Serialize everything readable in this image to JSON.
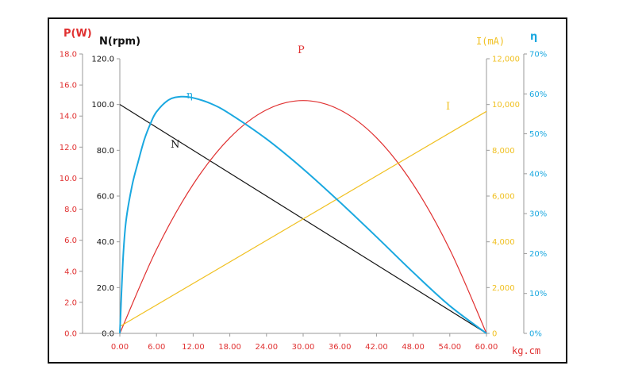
{
  "chart_data": {
    "type": "line",
    "xlabel": "kg.cm",
    "x_ticks": [
      "0.00",
      "6.00",
      "12.00",
      "18.00",
      "24.00",
      "30.00",
      "36.00",
      "42.00",
      "48.00",
      "54.00",
      "60.00"
    ],
    "xlim": [
      0,
      60
    ],
    "axes": {
      "P": {
        "label": "P(W)",
        "ticks": [
          "0.0",
          "2.0",
          "4.0",
          "6.0",
          "8.0",
          "10.0",
          "12.0",
          "14.0",
          "16.0",
          "18.0"
        ],
        "range": [
          0,
          18
        ],
        "color": "#e03030"
      },
      "N": {
        "label": "N(rpm)",
        "ticks": [
          "0.0",
          "20.0",
          "40.0",
          "60.0",
          "80.0",
          "100.0",
          "120.0"
        ],
        "range": [
          0,
          120
        ],
        "color": "#111111"
      },
      "I": {
        "label": "I(mA)",
        "ticks": [
          "0",
          "2,000",
          "4,000",
          "6,000",
          "8,000",
          "10,000",
          "12,000"
        ],
        "range": [
          0,
          12000
        ],
        "color": "#f0c020"
      },
      "eta": {
        "label": "η",
        "ticks": [
          "0%",
          "10%",
          "20%",
          "30%",
          "40%",
          "50%",
          "60%",
          "70%"
        ],
        "range": [
          0,
          70
        ],
        "color": "#1aa8e0"
      }
    },
    "series": [
      {
        "name": "N",
        "axis": "N",
        "color": "#111111",
        "x": [
          0,
          60
        ],
        "y": [
          100,
          0
        ]
      },
      {
        "name": "P",
        "axis": "P",
        "color": "#e03030",
        "x": [
          0,
          6,
          12,
          18,
          24,
          30,
          36,
          42,
          48,
          54,
          60
        ],
        "y": [
          0,
          5.4,
          9.6,
          12.6,
          14.4,
          15.0,
          14.4,
          12.6,
          9.6,
          5.4,
          0
        ]
      },
      {
        "name": "I",
        "axis": "I",
        "color": "#f0c020",
        "x": [
          0,
          60
        ],
        "y": [
          300,
          9700
        ]
      },
      {
        "name": "η",
        "axis": "eta",
        "color": "#1aa8e0",
        "x": [
          0,
          0.5,
          1,
          2,
          3,
          4,
          5,
          6,
          8,
          10,
          12,
          15,
          18,
          24,
          30,
          36,
          42,
          48,
          54,
          60
        ],
        "y": [
          0,
          18,
          28,
          37,
          43,
          48.5,
          52.5,
          55.5,
          58.5,
          59.3,
          59.0,
          57.5,
          55.0,
          48.7,
          41.2,
          32.9,
          24.2,
          15.3,
          6.9,
          0
        ]
      }
    ],
    "series_labels": {
      "P": "P",
      "N": "N",
      "I": "I",
      "eta": "η"
    }
  }
}
